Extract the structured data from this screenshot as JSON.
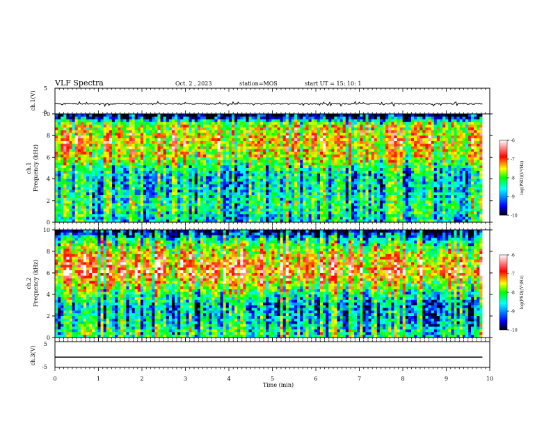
{
  "header": {
    "title": "VLF Spectra",
    "date": "Oct. 2 , 2023",
    "station": "station=MOS",
    "start_time": "start UT =  15: 10: 1"
  },
  "chart_data": [
    {
      "type": "line",
      "panel": "ch1-waveform",
      "ylabel": "ch.1(V)",
      "ylim": [
        -5,
        5
      ],
      "y_ticks": [
        "5",
        "-5"
      ],
      "series": [
        {
          "values": [
            -1.1,
            -1.0,
            -1.2,
            -1.0,
            -1.1
          ]
        }
      ]
    },
    {
      "type": "heatmap",
      "panel": "ch1-spectrogram",
      "ylabel": "ch.1 Frequency (kHz)",
      "y_ticks": [
        "0",
        "2",
        "4",
        "6",
        "8",
        "10"
      ],
      "ylim": [
        0,
        10
      ],
      "xlim": [
        0,
        9.83
      ],
      "intensity_profile": [
        {
          "freq_khz": 0.3,
          "level": 0.35
        },
        {
          "freq_khz": 1.5,
          "level": 0.45
        },
        {
          "freq_khz": 3.0,
          "level": 0.35
        },
        {
          "freq_khz": 4.5,
          "level": 0.35
        },
        {
          "freq_khz": 6.0,
          "level": 0.62
        },
        {
          "freq_khz": 7.5,
          "level": 0.7
        },
        {
          "freq_khz": 9.0,
          "level": 0.62
        },
        {
          "freq_khz": 9.8,
          "level": 0.05
        }
      ],
      "colorbar": {
        "label": "log(PSD)(V²/Hz)",
        "ticks": [
          "-6",
          "-7",
          "-8",
          "-9",
          "-10"
        ],
        "range": [
          -10,
          -6
        ]
      }
    },
    {
      "type": "heatmap",
      "panel": "ch2-spectrogram",
      "ylabel": "ch.2 Frequency (kHz)",
      "y_ticks": [
        "0",
        "2",
        "4",
        "6",
        "8",
        "10"
      ],
      "ylim": [
        0,
        10
      ],
      "xlim": [
        0,
        9.83
      ],
      "intensity_profile": [
        {
          "freq_khz": 0.3,
          "level": 0.45
        },
        {
          "freq_khz": 1.5,
          "level": 0.35
        },
        {
          "freq_khz": 3.0,
          "level": 0.3
        },
        {
          "freq_khz": 4.5,
          "level": 0.55
        },
        {
          "freq_khz": 6.0,
          "level": 0.8
        },
        {
          "freq_khz": 7.5,
          "level": 0.72
        },
        {
          "freq_khz": 9.0,
          "level": 0.45
        },
        {
          "freq_khz": 9.8,
          "level": 0.1
        }
      ],
      "colorbar": {
        "label": "log(PSD)(V²/Hz)",
        "ticks": [
          "-6",
          "-7",
          "-8",
          "-9",
          "-10"
        ],
        "range": [
          -10,
          -6
        ]
      }
    },
    {
      "type": "line",
      "panel": "ch3-waveform",
      "ylabel": "ch.3(V)",
      "ylim": [
        -5,
        5
      ],
      "y_ticks": [
        "5",
        "-5"
      ],
      "series": [
        {
          "values": [
            -1.0,
            -1.0
          ]
        }
      ]
    }
  ],
  "x_axis": {
    "label": "Time (min)",
    "ticks": [
      "0",
      "1",
      "2",
      "3",
      "4",
      "5",
      "6",
      "7",
      "8",
      "9",
      "10"
    ],
    "range": [
      0,
      10
    ]
  },
  "colors": {
    "colormap": [
      "#000000",
      "#0000ff",
      "#00ffff",
      "#00ff00",
      "#ffff00",
      "#ff0000",
      "#ffffff"
    ]
  }
}
